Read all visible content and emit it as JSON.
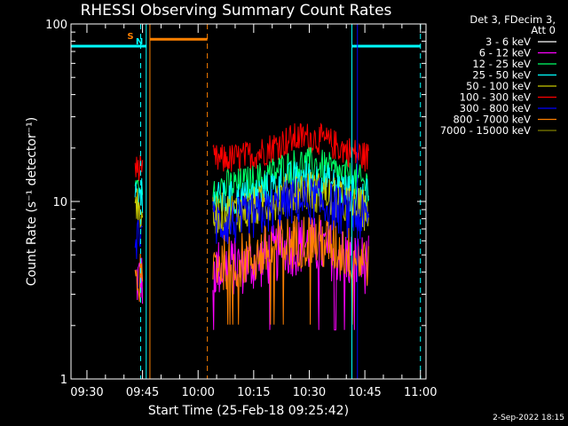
{
  "chart_data": {
    "type": "line",
    "title": "RHESSI Observing Summary Count Rates",
    "xlabel": "Start Time (25-Feb-18 09:25:42)",
    "ylabel": "Count Rate (s⁻¹ detector⁻¹)",
    "yscale": "log",
    "ylim": [
      1,
      100
    ],
    "xlim": [
      "09:25:42",
      "11:01:30"
    ],
    "x_ticks": [
      "09:30",
      "09:45",
      "10:00",
      "10:15",
      "10:30",
      "10:45",
      "11:00"
    ],
    "y_ticks": [
      "1",
      "10",
      "100"
    ],
    "legend_header": [
      "Det 3, FDecim 3,",
      "Att 0"
    ],
    "legend_position": "right",
    "series": [
      {
        "name": "3 - 6 keV",
        "color": "#ffffff"
      },
      {
        "name": "6 - 12 keV",
        "color": "#ff00ff"
      },
      {
        "name": "12 - 25 keV",
        "color": "#00ff66"
      },
      {
        "name": "25 - 50 keV",
        "color": "#00ffff"
      },
      {
        "name": "50 - 100 keV",
        "color": "#c8c800"
      },
      {
        "name": "100 - 300 keV",
        "color": "#ff0000"
      },
      {
        "name": "300 - 800 keV",
        "color": "#0000ff"
      },
      {
        "name": "800 - 7000 keV",
        "color": "#ff8000"
      },
      {
        "name": "7000 - 15000 keV",
        "color": "#808000"
      }
    ],
    "segments": [
      {
        "start": "09:43:00",
        "end": "09:45:00",
        "levels": {
          "100 - 300 keV": 15,
          "12 - 25 keV": 12,
          "25 - 50 keV": 11,
          "50 - 100 keV": 9,
          "300 - 800 keV": 6.5,
          "6 - 12 keV": 3.6,
          "800 - 7000 keV": 3.6
        }
      },
      {
        "start": "10:04:00",
        "end": "10:46:00",
        "levels": {
          "100 - 300 keV": 17,
          "12 - 25 keV": 12,
          "25 - 50 keV": 10,
          "50 - 100 keV": 8.5,
          "300 - 800 keV": 7.5,
          "6 - 12 keV": 4.2,
          "800 - 7000 keV": 4.5
        }
      }
    ],
    "attenuator_bars": [
      {
        "label": "",
        "color": "#00ffff",
        "start": "09:25:42",
        "end": "09:46:00",
        "level": 75
      },
      {
        "label": "",
        "color": "#00ffff",
        "start": "10:41:30",
        "end": "11:00:00",
        "level": 75
      },
      {
        "label": "",
        "color": "#ff8000",
        "start": "09:47:00",
        "end": "10:02:30",
        "level": 82
      }
    ],
    "flags": [
      {
        "label": "S",
        "color": "#ff8000"
      },
      {
        "label": "N",
        "color": "#00ffff"
      }
    ],
    "vlines_solid": [
      {
        "t": "09:25:42",
        "color": "#00ffff"
      },
      {
        "t": "09:46:00",
        "color": "#00ffff"
      },
      {
        "t": "09:47:00",
        "color": "#ff8000"
      },
      {
        "t": "10:41:30",
        "color": "#00ffff"
      },
      {
        "t": "10:43:00",
        "color": "#0000ff"
      }
    ],
    "vlines_dashed": [
      {
        "t": "09:44:30",
        "color": "#00ffff"
      },
      {
        "t": "10:02:30",
        "color": "#ff8000"
      },
      {
        "t": "11:00:00",
        "color": "#00ffff"
      }
    ],
    "timestamp": "2-Sep-2022 18:15"
  }
}
